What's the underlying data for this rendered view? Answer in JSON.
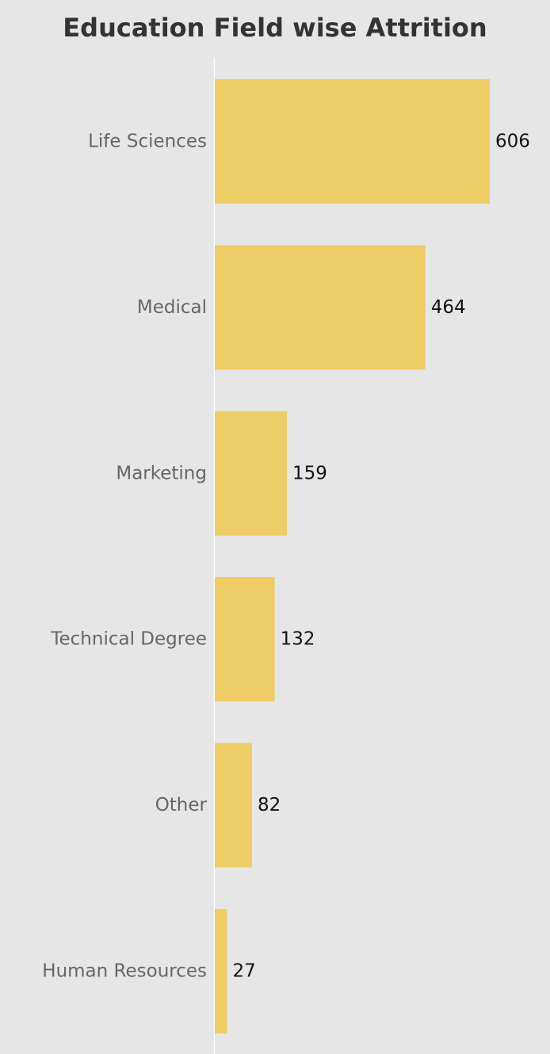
{
  "chart_data": {
    "type": "bar",
    "orientation": "horizontal",
    "title": "Education Field wise Attrition",
    "categories": [
      "Life Sciences",
      "Medical",
      "Marketing",
      "Technical Degree",
      "Other",
      "Human Resources"
    ],
    "values": [
      606,
      464,
      159,
      132,
      82,
      27
    ],
    "xlabel": "",
    "ylabel": "",
    "xlim": [
      0,
      606
    ],
    "grid": false,
    "bar_color": "#efcd66",
    "background_color": "#e6e6e6",
    "axis_line_color": "#ffffff"
  }
}
